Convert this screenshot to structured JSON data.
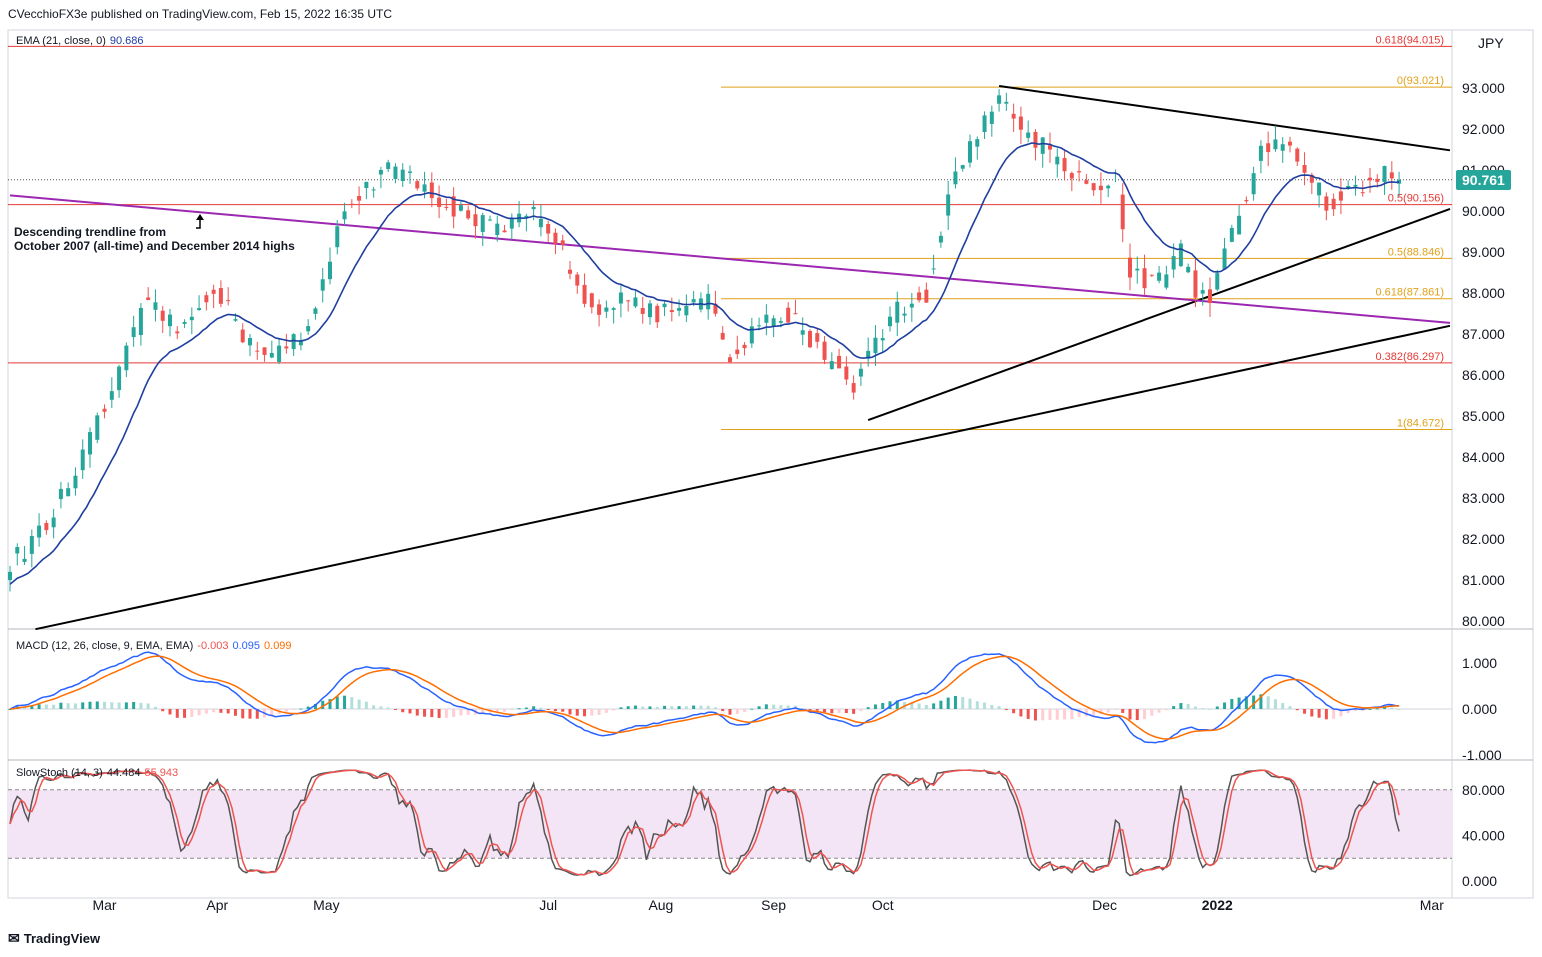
{
  "header": {
    "publisher": "CVecchioFX3e published on TradingView.com, Feb 15, 2022 16:35 UTC"
  },
  "currency": "JPY",
  "last_price": "90.761",
  "footer": {
    "brand": "TradingView"
  },
  "colors": {
    "up": "#26a69a",
    "down": "#ef5350",
    "ema": "#1f3fa0",
    "fib": "#e1a11a",
    "red_level": "#e53935",
    "purple": "#9c27b0",
    "macd": "#2962ff",
    "signal": "#ff6d00",
    "k": "#555555",
    "d": "#ef5350",
    "stoch_band": "#f3e5f5"
  },
  "indicators": {
    "ema": {
      "name": "EMA (21, close, 0)",
      "value": "90.686"
    },
    "macd": {
      "name": "MACD (12, 26, close, 9, EMA, EMA)",
      "hist": "-0.003",
      "macd": "0.095",
      "signal": "0.099"
    },
    "stoch": {
      "name": "SlowStoch (14, 3)",
      "k": "44.484",
      "d": "55.943"
    }
  },
  "annotation": {
    "line1": "Descending trendline from",
    "line2": "October 2007 (all-time) and December 2014 highs"
  },
  "chart_data": [
    {
      "type": "candlestick",
      "ylim": [
        79.8,
        94.4
      ],
      "y_ticks": [
        "80.000",
        "81.000",
        "82.000",
        "83.000",
        "84.000",
        "85.000",
        "86.000",
        "87.000",
        "88.000",
        "89.000",
        "90.000",
        "91.000",
        "92.000",
        "93.000"
      ],
      "x_ticks": [
        "Mar",
        "Apr",
        "May",
        "Jul",
        "Aug",
        "Sep",
        "Oct",
        "Dec",
        "2022",
        "Mar"
      ],
      "x_tick_days": [
        26,
        57,
        87,
        148,
        179,
        210,
        240,
        301,
        332,
        391
      ],
      "anchors": [
        [
          0,
          81.4
        ],
        [
          10,
          82.3
        ],
        [
          20,
          84.0
        ],
        [
          30,
          86.0
        ],
        [
          38,
          87.9
        ],
        [
          46,
          87.0
        ],
        [
          56,
          88.2
        ],
        [
          64,
          87.0
        ],
        [
          72,
          86.5
        ],
        [
          82,
          87.0
        ],
        [
          92,
          90.1
        ],
        [
          104,
          91.1
        ],
        [
          116,
          90.4
        ],
        [
          124,
          90.0
        ],
        [
          134,
          89.5
        ],
        [
          144,
          89.9
        ],
        [
          152,
          89.0
        ],
        [
          160,
          87.6
        ],
        [
          168,
          87.9
        ],
        [
          176,
          87.5
        ],
        [
          184,
          87.6
        ],
        [
          192,
          87.8
        ],
        [
          198,
          86.3
        ],
        [
          206,
          87.2
        ],
        [
          214,
          87.5
        ],
        [
          222,
          86.7
        ],
        [
          232,
          85.8
        ],
        [
          238,
          86.8
        ],
        [
          244,
          87.6
        ],
        [
          252,
          88.0
        ],
        [
          260,
          90.9
        ],
        [
          266,
          92.0
        ],
        [
          272,
          92.7
        ],
        [
          280,
          91.9
        ],
        [
          290,
          91.2
        ],
        [
          296,
          90.6
        ],
        [
          304,
          90.8
        ],
        [
          308,
          88.4
        ],
        [
          316,
          88.3
        ],
        [
          322,
          89.0
        ],
        [
          326,
          88.1
        ],
        [
          330,
          87.8
        ],
        [
          336,
          89.4
        ],
        [
          344,
          91.4
        ],
        [
          350,
          91.8
        ],
        [
          356,
          91.0
        ],
        [
          362,
          90.2
        ],
        [
          368,
          90.4
        ],
        [
          376,
          90.9
        ],
        [
          382,
          90.761
        ]
      ],
      "ema_21_last": 90.686,
      "fibonacci": [
        {
          "label": "0.618(94.015)",
          "value": 94.015,
          "color": "red"
        },
        {
          "label": "0(93.021)",
          "value": 93.021,
          "color": "orange"
        },
        {
          "label": "0.5(90.156)",
          "value": 90.156,
          "color": "red"
        },
        {
          "label": "0.5(88.846)",
          "value": 88.846,
          "color": "orange"
        },
        {
          "label": "0.618(87.861)",
          "value": 87.861,
          "color": "orange"
        },
        {
          "label": "0.382(86.297)",
          "value": 86.297,
          "color": "red"
        },
        {
          "label": "1(84.672)",
          "value": 84.672,
          "color": "orange"
        }
      ],
      "trendlines": [
        {
          "name": "descending-resistance",
          "from": [
            272,
            93.05
          ],
          "to": [
            396,
            91.48
          ]
        },
        {
          "name": "rising-support-short",
          "from": [
            236,
            84.9
          ],
          "to": [
            396,
            90.05
          ]
        },
        {
          "name": "rising-support-long",
          "from": [
            7,
            79.8
          ],
          "to": [
            396,
            87.2
          ]
        },
        {
          "name": "long-term-descending",
          "from": [
            0,
            90.38
          ],
          "to": [
            396,
            87.27
          ]
        }
      ]
    },
    {
      "type": "macd",
      "ylim": [
        -1.0,
        1.5
      ],
      "y_ticks": [
        "1.000",
        "0.000",
        "-1.000"
      ]
    },
    {
      "type": "stochastic",
      "ylim": [
        -2,
        108
      ],
      "y_ticks": [
        "80.000",
        "40.000",
        "0.000"
      ],
      "bands": [
        20,
        80
      ]
    }
  ]
}
